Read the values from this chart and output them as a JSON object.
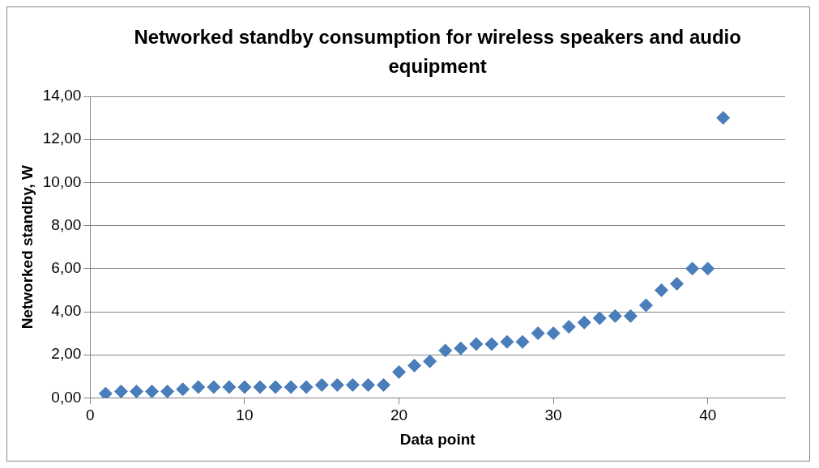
{
  "chart_data": {
    "type": "scatter",
    "title": "Networked standby consumption for wireless speakers and audio equipment",
    "xlabel": "Data point",
    "ylabel": "Networked standby, W",
    "x": [
      1,
      2,
      3,
      4,
      5,
      6,
      7,
      8,
      9,
      10,
      11,
      12,
      13,
      14,
      15,
      16,
      17,
      18,
      19,
      20,
      21,
      22,
      23,
      24,
      25,
      26,
      27,
      28,
      29,
      30,
      31,
      32,
      33,
      34,
      35,
      36,
      37,
      38,
      39,
      40,
      41
    ],
    "series": [
      {
        "color": "#4a7ebb",
        "values": [
          0.2,
          0.3,
          0.3,
          0.3,
          0.3,
          0.4,
          0.5,
          0.5,
          0.5,
          0.5,
          0.5,
          0.5,
          0.5,
          0.5,
          0.6,
          0.6,
          0.6,
          0.6,
          0.6,
          1.2,
          1.5,
          1.7,
          2.2,
          2.3,
          2.5,
          2.5,
          2.6,
          2.6,
          3.0,
          3.0,
          3.3,
          3.5,
          3.7,
          3.8,
          3.8,
          4.3,
          5.0,
          5.3,
          6.0,
          6.0,
          13.0
        ]
      }
    ],
    "xlim": [
      0,
      45
    ],
    "xticks": [
      0,
      10,
      20,
      30,
      40
    ],
    "ylim": [
      0,
      14
    ],
    "yticks": [
      {
        "value": 0,
        "label": "0,00"
      },
      {
        "value": 2,
        "label": "2,00"
      },
      {
        "value": 4,
        "label": "4,00"
      },
      {
        "value": 6,
        "label": "6,00"
      },
      {
        "value": 8,
        "label": "8,00"
      },
      {
        "value": 10,
        "label": "10,00"
      },
      {
        "value": 12,
        "label": "12,00"
      },
      {
        "value": 14,
        "label": "14,00"
      }
    ],
    "grid": "y",
    "legend": false,
    "marker": "diamond"
  }
}
